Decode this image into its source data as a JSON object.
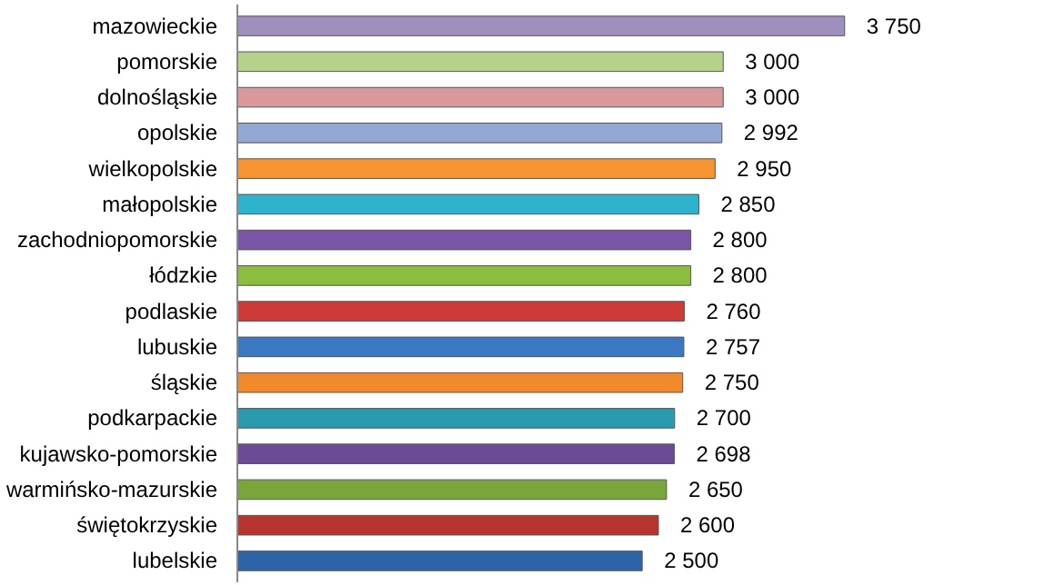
{
  "chart_data": {
    "type": "bar",
    "orientation": "horizontal",
    "categories": [
      "mazowieckie",
      "pomorskie",
      "dolnośląskie",
      "opolskie",
      "wielkopolskie",
      "małopolskie",
      "zachodniopomorskie",
      "łódzkie",
      "podlaskie",
      "lubuskie",
      "śląskie",
      "podkarpackie",
      "kujawsko-pomorskie",
      "warmińsko-mazurskie",
      "świętokrzyskie",
      "lubelskie"
    ],
    "values": [
      3750,
      3000,
      3000,
      2992,
      2950,
      2850,
      2800,
      2800,
      2760,
      2757,
      2750,
      2700,
      2698,
      2650,
      2600,
      2500
    ],
    "value_labels": [
      "3 750",
      "3 000",
      "3 000",
      "2 992",
      "2 950",
      "2 850",
      "2 800",
      "2 800",
      "2 760",
      "2 757",
      "2 750",
      "2 700",
      "2 698",
      "2 650",
      "2 600",
      "2 500"
    ],
    "colors": [
      "#9e8fbf",
      "#b5d28a",
      "#d9999a",
      "#93a9d4",
      "#f79532",
      "#2eb3cc",
      "#7b55a5",
      "#8cbd3c",
      "#cc3b37",
      "#3a78c4",
      "#f08a2a",
      "#2a9aaf",
      "#6b4a96",
      "#79a63a",
      "#b83430",
      "#2f63a8"
    ],
    "grid": false
  }
}
